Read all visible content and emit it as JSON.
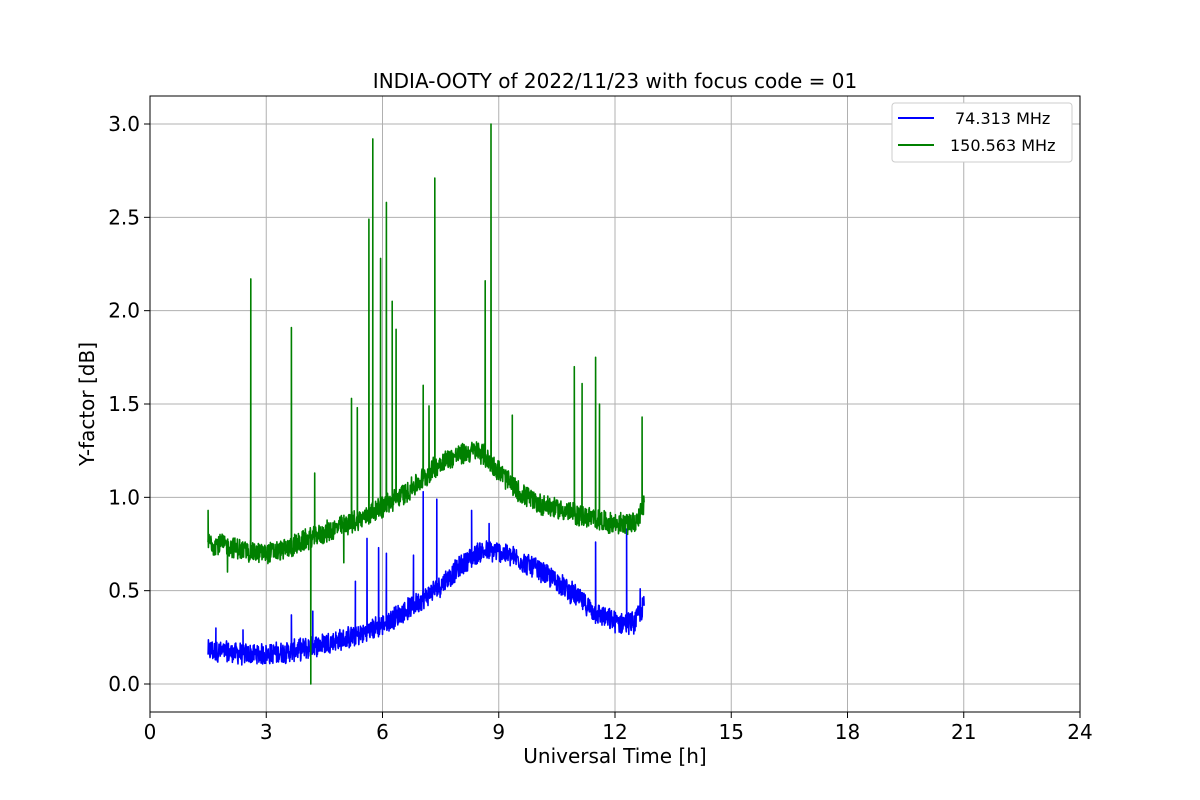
{
  "chart_data": {
    "type": "line",
    "title": "INDIA-OOTY of 2022/11/23 with focus code = 01",
    "xlabel": "Universal Time [h]",
    "ylabel": "Y-factor [dB]",
    "xlim": [
      0,
      24
    ],
    "ylim": [
      -0.15,
      3.15
    ],
    "xticks": [
      0,
      3,
      6,
      9,
      12,
      15,
      18,
      21,
      24
    ],
    "xtick_labels": [
      "0",
      "3",
      "6",
      "9",
      "12",
      "15",
      "18",
      "21",
      "24"
    ],
    "yticks": [
      0.0,
      0.5,
      1.0,
      1.5,
      2.0,
      2.5,
      3.0
    ],
    "ytick_labels": [
      "0.0",
      "0.5",
      "1.0",
      "1.5",
      "2.0",
      "2.5",
      "3.0"
    ],
    "grid": true,
    "legend_position": "top-right",
    "series": [
      {
        "name": "74.313 MHz",
        "color": "#0000ff",
        "x": [
          1.5,
          2.0,
          2.5,
          3.0,
          3.5,
          4.0,
          4.5,
          5.0,
          5.5,
          6.0,
          6.5,
          7.0,
          7.5,
          8.0,
          8.5,
          9.0,
          9.5,
          10.0,
          10.5,
          11.0,
          11.5,
          12.0,
          12.5,
          12.75
        ],
        "y": [
          0.18,
          0.17,
          0.16,
          0.16,
          0.17,
          0.19,
          0.22,
          0.24,
          0.27,
          0.32,
          0.38,
          0.45,
          0.53,
          0.63,
          0.71,
          0.71,
          0.67,
          0.61,
          0.55,
          0.47,
          0.38,
          0.33,
          0.33,
          0.42
        ],
        "spikes": [
          [
            1.7,
            0.3
          ],
          [
            2.4,
            0.29
          ],
          [
            3.65,
            0.37
          ],
          [
            4.2,
            0.39
          ],
          [
            5.3,
            0.55
          ],
          [
            5.6,
            0.78
          ],
          [
            5.9,
            0.73
          ],
          [
            6.1,
            0.7
          ],
          [
            6.8,
            0.69
          ],
          [
            7.05,
            1.03
          ],
          [
            7.4,
            0.99
          ],
          [
            8.3,
            0.93
          ],
          [
            8.75,
            0.86
          ],
          [
            11.5,
            0.76
          ],
          [
            12.3,
            0.83
          ],
          [
            12.65,
            0.51
          ]
        ]
      },
      {
        "name": "150.563 MHz",
        "color": "#008000",
        "x": [
          1.5,
          2.0,
          2.5,
          3.0,
          3.5,
          4.0,
          4.5,
          5.0,
          5.5,
          6.0,
          6.5,
          7.0,
          7.5,
          8.0,
          8.5,
          9.0,
          9.5,
          10.0,
          10.5,
          11.0,
          11.5,
          12.0,
          12.5,
          12.75
        ],
        "y": [
          0.76,
          0.74,
          0.71,
          0.7,
          0.72,
          0.77,
          0.81,
          0.85,
          0.89,
          0.95,
          1.01,
          1.09,
          1.19,
          1.23,
          1.25,
          1.14,
          1.03,
          0.97,
          0.94,
          0.91,
          0.88,
          0.86,
          0.86,
          0.95
        ],
        "spikes": [
          [
            1.5,
            0.93
          ],
          [
            2.6,
            2.17
          ],
          [
            3.65,
            1.91
          ],
          [
            4.25,
            1.13
          ],
          [
            5.2,
            1.53
          ],
          [
            5.35,
            1.48
          ],
          [
            5.65,
            2.49
          ],
          [
            5.75,
            2.92
          ],
          [
            5.95,
            2.28
          ],
          [
            6.1,
            2.58
          ],
          [
            6.25,
            2.05
          ],
          [
            6.35,
            1.9
          ],
          [
            7.05,
            1.6
          ],
          [
            7.2,
            1.49
          ],
          [
            7.35,
            2.71
          ],
          [
            8.65,
            2.16
          ],
          [
            8.8,
            3.0
          ],
          [
            9.35,
            1.44
          ],
          [
            10.95,
            1.7
          ],
          [
            11.15,
            1.61
          ],
          [
            11.5,
            1.75
          ],
          [
            11.6,
            1.5
          ],
          [
            12.7,
            1.43
          ]
        ],
        "dips": [
          [
            4.15,
            0.0
          ],
          [
            2.0,
            0.6
          ],
          [
            5.0,
            0.65
          ]
        ]
      }
    ]
  }
}
